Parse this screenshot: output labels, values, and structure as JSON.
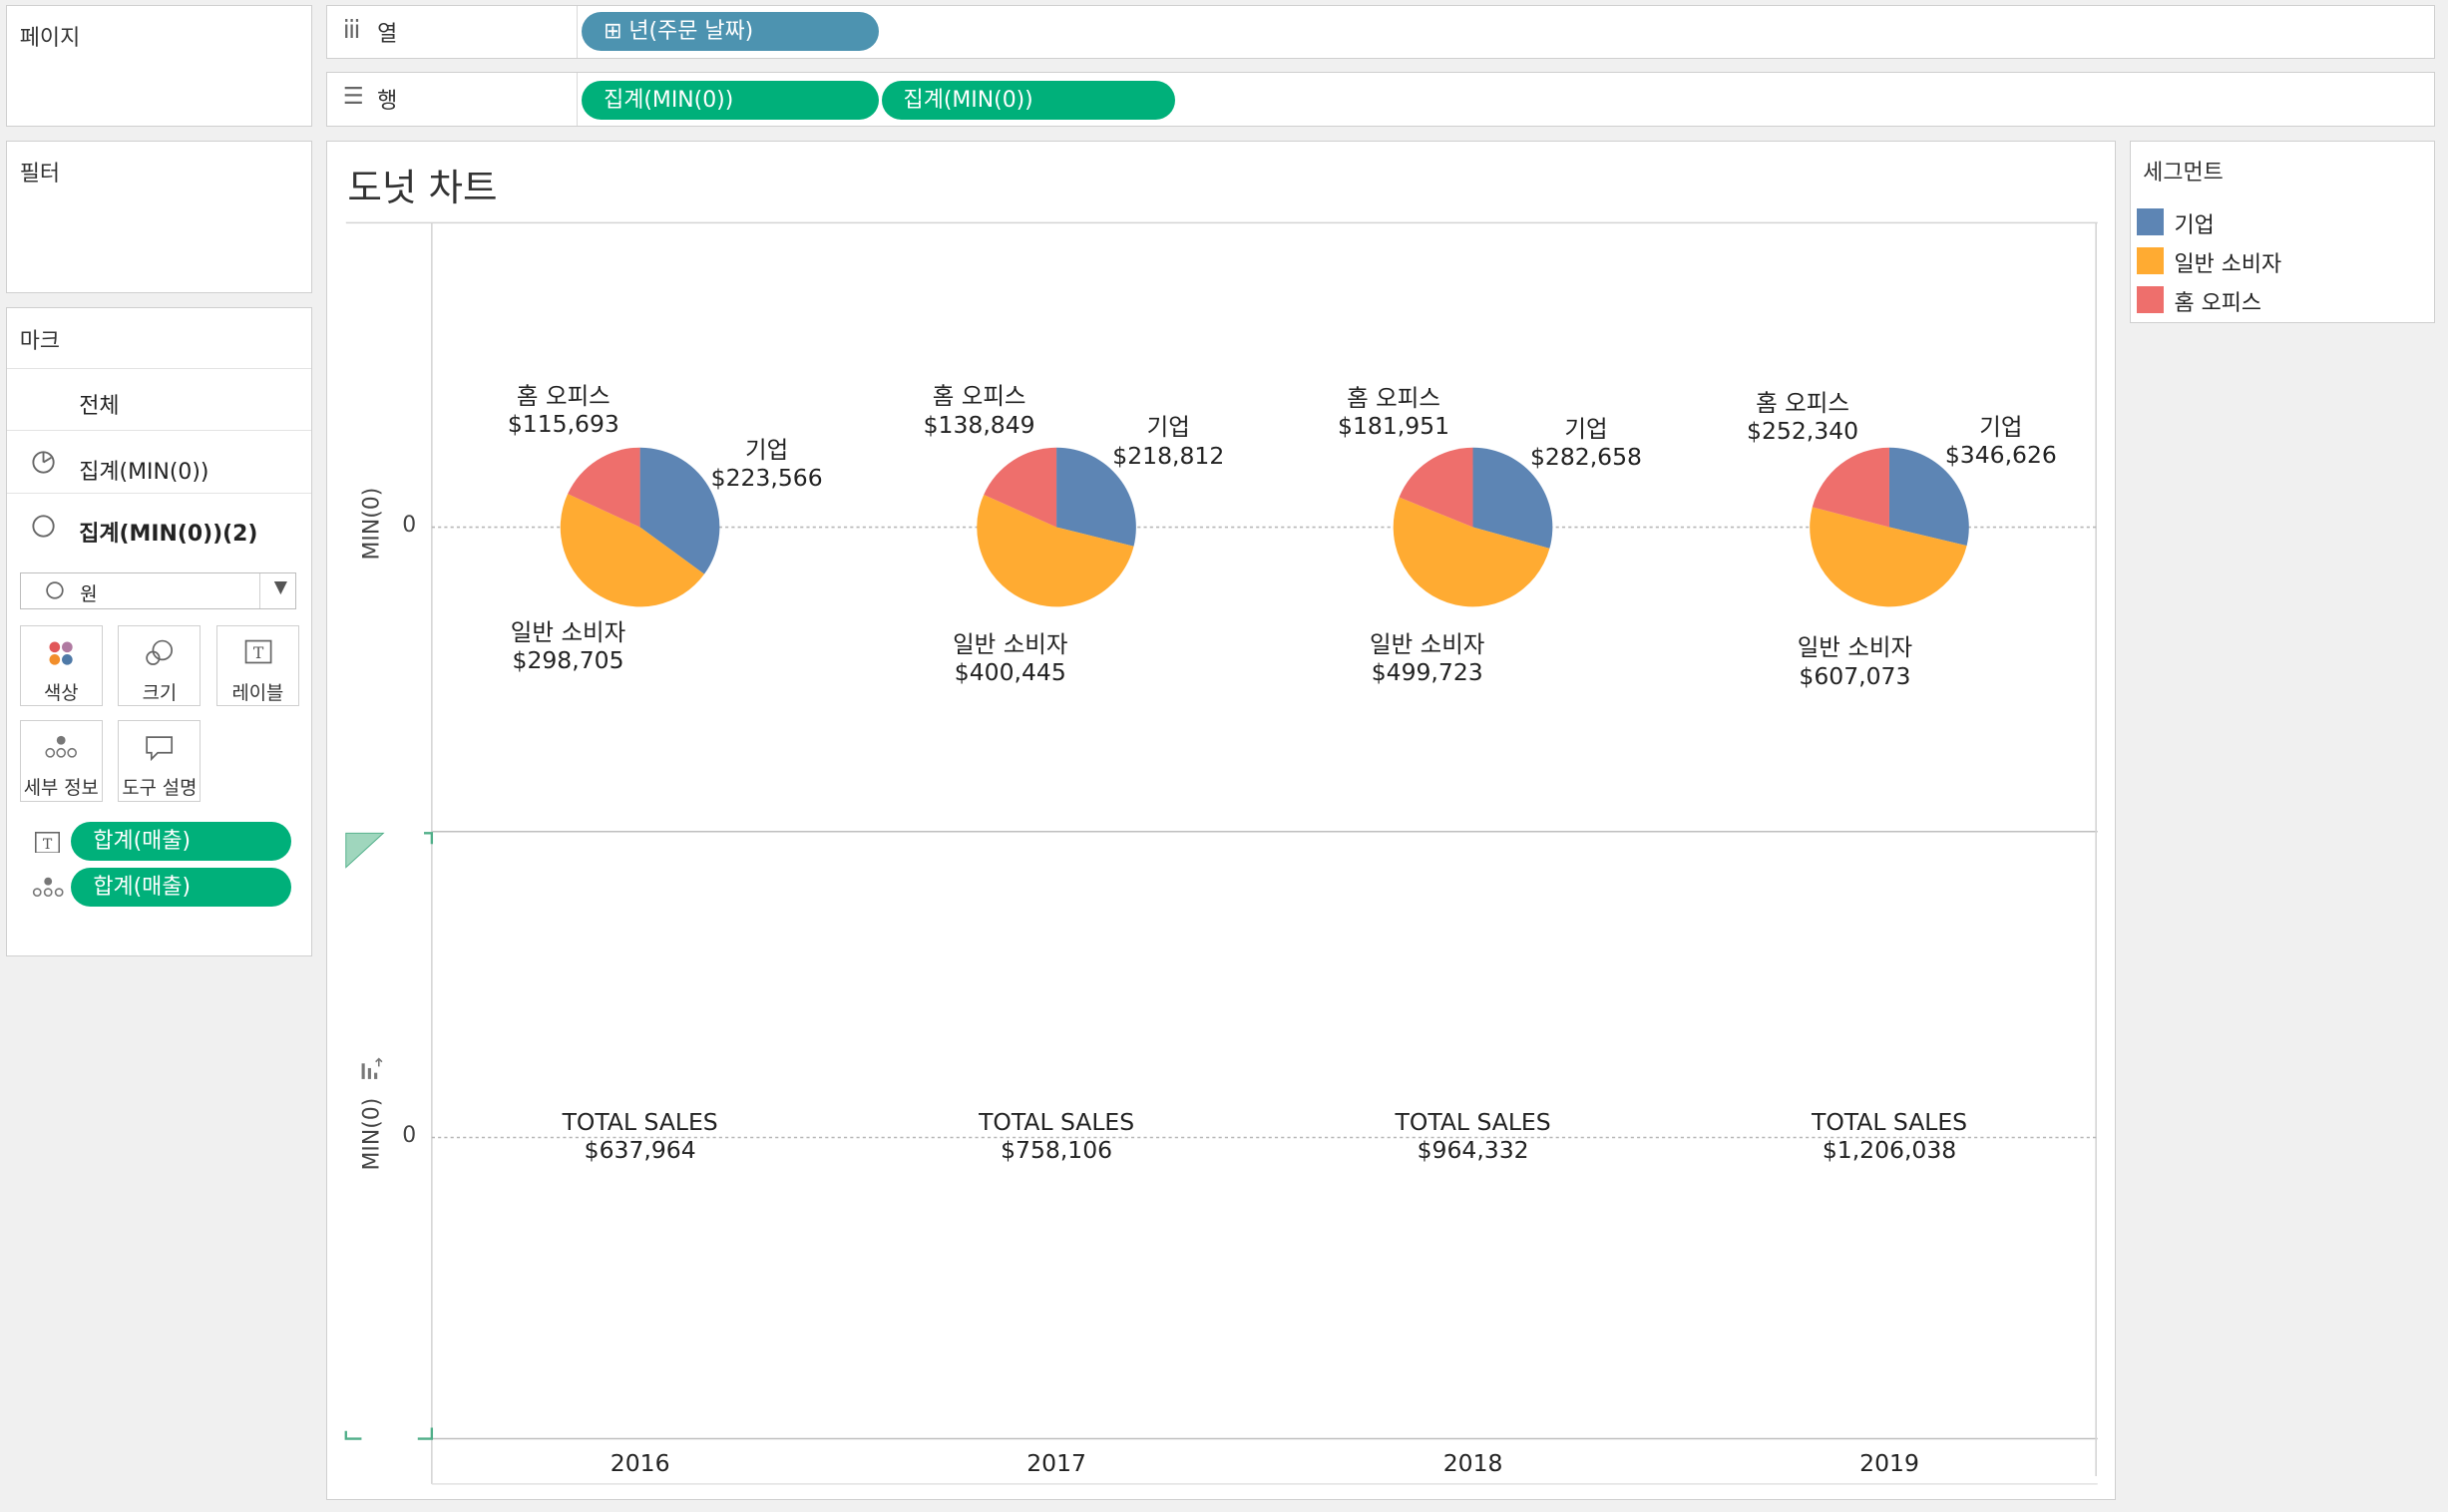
{
  "shelves": {
    "pages_title": "페이지",
    "filters_title": "필터",
    "columns": {
      "icon": "iii",
      "label": "열",
      "pills": [
        "⊞ 년(주문 날짜)"
      ]
    },
    "rows": {
      "icon": "☰",
      "label": "행",
      "pills": [
        "집계(MIN(0))",
        "집계(MIN(0))"
      ]
    }
  },
  "marks": {
    "title": "마크",
    "all_label": "전체",
    "layer1": "집계(MIN(0))",
    "layer2": "집계(MIN(0))(2)",
    "mark_type": "원",
    "cards": [
      "색상",
      "크기",
      "레이블",
      "세부 정보",
      "도구 설명"
    ],
    "fields": [
      "합계(매출)",
      "합계(매출)"
    ]
  },
  "legend": {
    "title": "세그먼트",
    "items": [
      {
        "label": "기업",
        "color": "#5d85b4"
      },
      {
        "label": "일반 소비자",
        "color": "#ffab32"
      },
      {
        "label": "홈 오피스",
        "color": "#ee6f6c"
      }
    ]
  },
  "viz": {
    "title": "도넛 차트",
    "axis_label": "MIN(0)",
    "axis_tick": "0"
  },
  "chart_data": {
    "type": "pie",
    "title": "도넛 차트",
    "ylabel": "MIN(0)",
    "categories": [
      "2016",
      "2017",
      "2018",
      "2019"
    ],
    "segments": [
      "기업",
      "일반 소비자",
      "홈 오피스"
    ],
    "segment_colors": [
      "#5d85b4",
      "#ffab32",
      "#ee6f6c"
    ],
    "values": [
      {
        "year": "2016",
        "기업": 223566,
        "일반 소비자": 298705,
        "홈 오피스": 115693,
        "total": 637964
      },
      {
        "year": "2017",
        "기업": 218812,
        "일반 소비자": 400445,
        "홈 오피스": 138849,
        "total": 758106
      },
      {
        "year": "2018",
        "기업": 282658,
        "일반 소비자": 499723,
        "홈 오피스": 181951,
        "total": 964332
      },
      {
        "year": "2019",
        "기업": 346626,
        "일반 소비자": 607073,
        "홈 오피스": 252340,
        "total": 1206038
      }
    ],
    "data_labels": [
      {
        "기업": "$223,566",
        "일반 소비자": "$298,705",
        "홈 오피스": "$115,693"
      },
      {
        "기업": "$218,812",
        "일반 소비자": "$400,445",
        "홈 오피스": "$138,849"
      },
      {
        "기업": "$282,658",
        "일반 소비자": "$499,723",
        "홈 오피스": "$181,951"
      },
      {
        "기업": "$346,626",
        "일반 소비자": "$607,073",
        "홈 오피스": "$252,340"
      }
    ],
    "total_label": "TOTAL SALES",
    "total_labels": [
      "$637,964",
      "$758,106",
      "$964,332",
      "$1,206,038"
    ]
  }
}
